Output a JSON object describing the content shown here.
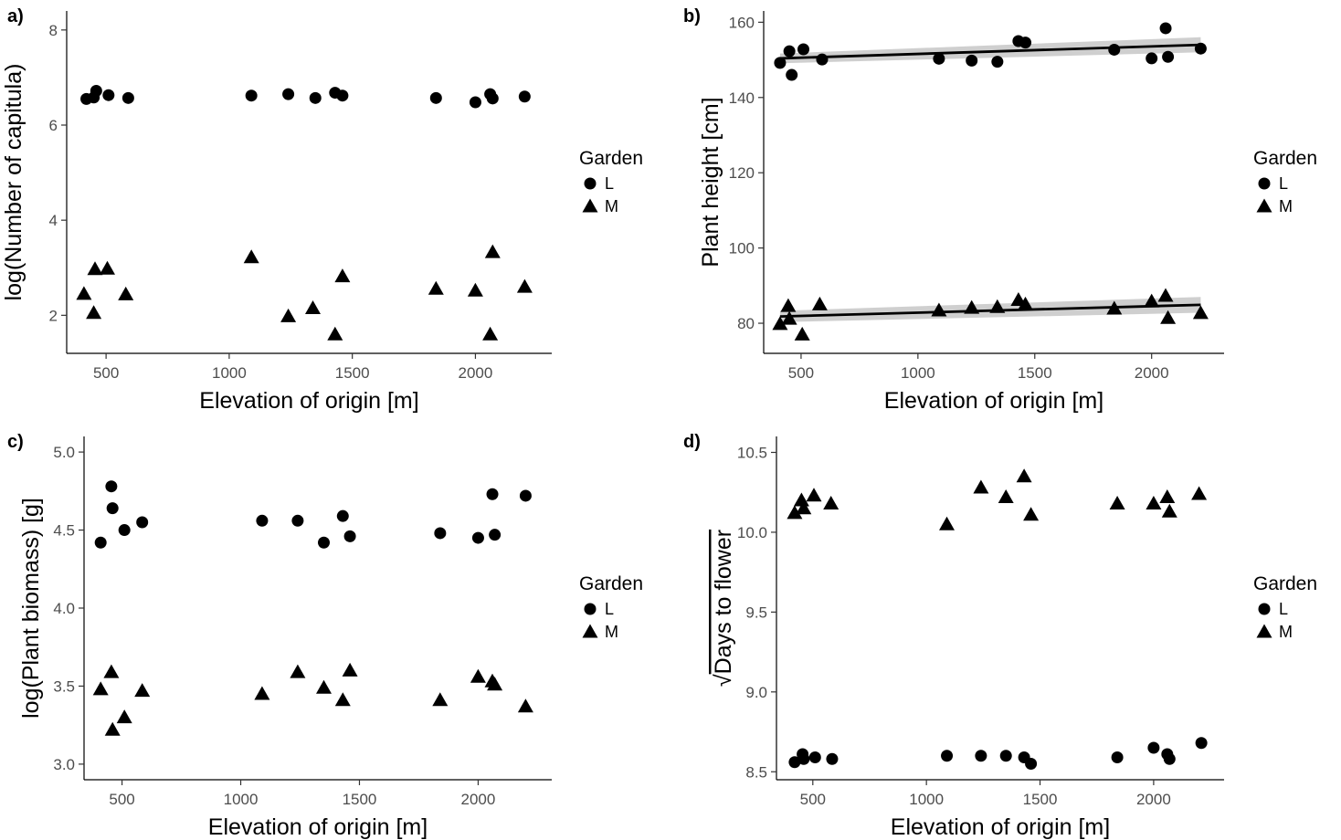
{
  "legend": {
    "title": "Garden",
    "items": [
      {
        "label": "L",
        "shape": "circle"
      },
      {
        "label": "M",
        "shape": "triangle"
      }
    ]
  },
  "chart_data": [
    {
      "id": "a",
      "type": "scatter",
      "panel_label": "a)",
      "xlabel": "Elevation of origin [m]",
      "ylabel": "log(Number of capitula)",
      "xlim": [
        340,
        2310
      ],
      "ylim": [
        1.2,
        8.4
      ],
      "xticks": [
        500,
        1000,
        1500,
        2000
      ],
      "yticks": [
        2,
        4,
        6,
        8
      ],
      "series": [
        {
          "name": "L",
          "marker": "circle",
          "x": [
            420,
            450,
            460,
            510,
            590,
            1090,
            1240,
            1350,
            1430,
            1460,
            1840,
            2000,
            2060,
            2070,
            2200
          ],
          "y": [
            6.55,
            6.58,
            6.72,
            6.63,
            6.57,
            6.62,
            6.65,
            6.57,
            6.68,
            6.62,
            6.57,
            6.48,
            6.65,
            6.56,
            6.6
          ]
        },
        {
          "name": "M",
          "marker": "triangle",
          "x": [
            410,
            450,
            455,
            505,
            580,
            1090,
            1240,
            1340,
            1430,
            1460,
            1840,
            2000,
            2060,
            2070,
            2200
          ],
          "y": [
            2.45,
            2.05,
            2.97,
            2.98,
            2.44,
            3.22,
            1.98,
            2.15,
            1.6,
            2.82,
            2.56,
            2.52,
            1.6,
            3.33,
            2.6
          ]
        }
      ]
    },
    {
      "id": "b",
      "type": "scatter",
      "panel_label": "b)",
      "xlabel": "Elevation of origin [m]",
      "ylabel": "Plant height [cm]",
      "xlim": [
        340,
        2310
      ],
      "ylim": [
        72,
        163
      ],
      "xticks": [
        500,
        1000,
        1500,
        2000
      ],
      "yticks": [
        80,
        100,
        120,
        140,
        160
      ],
      "series": [
        {
          "name": "L",
          "marker": "circle",
          "x": [
            410,
            450,
            460,
            510,
            590,
            1090,
            1230,
            1340,
            1430,
            1460,
            1840,
            2000,
            2060,
            2070,
            2210
          ],
          "y": [
            149.2,
            152.3,
            146.0,
            152.8,
            150.1,
            150.3,
            149.8,
            149.5,
            155.0,
            154.6,
            152.7,
            150.4,
            158.4,
            150.8,
            153.0
          ],
          "fit": {
            "x": [
              410,
              2210
            ],
            "y": [
              150.4,
              154.0
            ],
            "ci_low": [
              149.1,
              152.0
            ],
            "ci_high": [
              151.7,
              156.0
            ]
          }
        },
        {
          "name": "M",
          "marker": "triangle",
          "x": [
            410,
            445,
            450,
            505,
            580,
            1090,
            1230,
            1340,
            1430,
            1460,
            1840,
            2000,
            2060,
            2070,
            2210
          ],
          "y": [
            79.8,
            84.6,
            81.2,
            77.0,
            85.0,
            83.4,
            84.1,
            84.3,
            86.2,
            85.0,
            83.9,
            85.8,
            87.3,
            81.4,
            82.7
          ],
          "fit": {
            "x": [
              410,
              2210
            ],
            "y": [
              81.8,
              84.9
            ],
            "ci_low": [
              80.3,
              82.8
            ],
            "ci_high": [
              83.3,
              87.0
            ]
          }
        }
      ]
    },
    {
      "id": "c",
      "type": "scatter",
      "panel_label": "c)",
      "xlabel": "Elevation of origin [m]",
      "ylabel": "log(Plant biomass) [g]",
      "xlim": [
        340,
        2310
      ],
      "ylim": [
        2.9,
        5.1
      ],
      "xticks": [
        500,
        1000,
        1500,
        2000
      ],
      "yticks": [
        3.0,
        3.5,
        4.0,
        4.5,
        5.0
      ],
      "series": [
        {
          "name": "L",
          "marker": "circle",
          "x": [
            410,
            455,
            460,
            510,
            585,
            1090,
            1240,
            1350,
            1430,
            1460,
            1840,
            2000,
            2060,
            2070,
            2200
          ],
          "y": [
            4.42,
            4.78,
            4.64,
            4.5,
            4.55,
            4.56,
            4.56,
            4.42,
            4.59,
            4.46,
            4.48,
            4.45,
            4.73,
            4.47,
            4.72
          ]
        },
        {
          "name": "M",
          "marker": "triangle",
          "x": [
            410,
            455,
            460,
            510,
            585,
            1090,
            1240,
            1350,
            1430,
            1460,
            1840,
            2000,
            2060,
            2070,
            2200
          ],
          "y": [
            3.48,
            3.59,
            3.22,
            3.3,
            3.47,
            3.45,
            3.59,
            3.49,
            3.41,
            3.6,
            3.41,
            3.56,
            3.53,
            3.51,
            3.37
          ]
        }
      ]
    },
    {
      "id": "d",
      "type": "scatter",
      "panel_label": "d)",
      "xlabel": "Elevation of origin [m]",
      "ylabel": "Days to flower",
      "ylabel_prefix": "√",
      "xlim": [
        340,
        2310
      ],
      "ylim": [
        8.45,
        10.6
      ],
      "xticks": [
        500,
        1000,
        1500,
        2000
      ],
      "yticks": [
        8.5,
        9.0,
        9.5,
        10.0,
        10.5
      ],
      "series": [
        {
          "name": "L",
          "marker": "circle",
          "x": [
            420,
            455,
            460,
            510,
            585,
            1090,
            1240,
            1350,
            1430,
            1460,
            1840,
            2000,
            2060,
            2070,
            2210
          ],
          "y": [
            8.56,
            8.61,
            8.58,
            8.59,
            8.58,
            8.6,
            8.6,
            8.6,
            8.59,
            8.55,
            8.59,
            8.65,
            8.61,
            8.58,
            8.68
          ]
        },
        {
          "name": "M",
          "marker": "triangle",
          "x": [
            420,
            450,
            460,
            505,
            580,
            1090,
            1240,
            1350,
            1430,
            1460,
            1840,
            2000,
            2060,
            2070,
            2200
          ],
          "y": [
            10.12,
            10.2,
            10.15,
            10.23,
            10.18,
            10.05,
            10.28,
            10.22,
            10.35,
            10.11,
            10.18,
            10.18,
            10.22,
            10.13,
            10.24
          ]
        }
      ]
    }
  ]
}
